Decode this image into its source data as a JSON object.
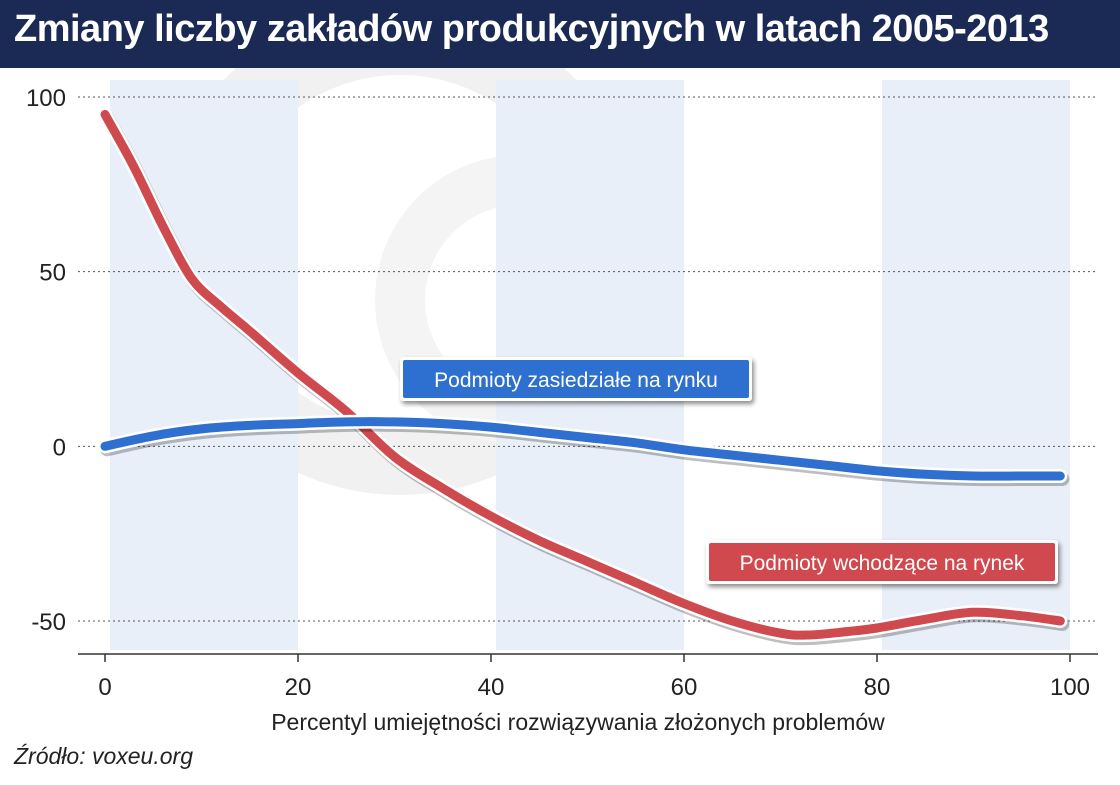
{
  "title": "Zmiany liczby zakładów produkcyjnych w latach 2005-2013",
  "source": "Źródło: voxeu.org",
  "colors": {
    "title_bg": "#1b2a54",
    "band": "#e9eff9",
    "blue": "#2f6fd0",
    "red": "#cf4a4f",
    "grid": "#555555"
  },
  "chart_data": {
    "type": "line",
    "xlabel": "Percentyl umiejętności rozwiązywania złożonych problemów",
    "ylabel": "",
    "xlim": [
      0,
      100
    ],
    "ylim": [
      -58,
      100
    ],
    "x_ticks": [
      0,
      20,
      40,
      60,
      80,
      100
    ],
    "y_ticks": [
      100,
      50,
      0,
      -50
    ],
    "x_tick_labels": [
      "0",
      "20",
      "40",
      "60",
      "80",
      "100"
    ],
    "y_tick_labels": [
      "100",
      "50",
      "0",
      "-50"
    ],
    "shaded_bands": [
      [
        0,
        20
      ],
      [
        40,
        60
      ],
      [
        80,
        100
      ]
    ],
    "grid": "horizontal dashed",
    "series": [
      {
        "name": "Podmioty zasiedziałe na rynku",
        "color": "blue",
        "x": [
          0,
          5,
          10,
          15,
          20,
          25,
          30,
          35,
          40,
          45,
          50,
          55,
          60,
          65,
          70,
          75,
          80,
          85,
          90,
          95,
          99
        ],
        "y": [
          0,
          3,
          5,
          6,
          6.5,
          7,
          7,
          6.5,
          5.5,
          4,
          2.5,
          1,
          -1,
          -2.5,
          -4,
          -5.5,
          -7,
          -8,
          -8.5,
          -8.5,
          -8.5
        ]
      },
      {
        "name": "Podmioty wchodzące na rynek",
        "color": "red",
        "x": [
          0,
          3,
          6,
          9,
          12,
          15,
          20,
          25,
          30,
          35,
          40,
          45,
          50,
          55,
          60,
          65,
          70,
          73,
          77,
          80,
          85,
          90,
          95,
          99
        ],
        "y": [
          95,
          80,
          63,
          48,
          40,
          33,
          21,
          10,
          -3,
          -12,
          -20,
          -27,
          -33,
          -39,
          -45,
          -50,
          -53.5,
          -54,
          -53,
          -52,
          -49.5,
          -47.5,
          -48.5,
          -50
        ]
      }
    ],
    "annotations": [
      {
        "text": "Podmioty zasiedziałe na rynku",
        "series": "blue"
      },
      {
        "text": "Podmioty wchodzące na rynek",
        "series": "red"
      }
    ]
  }
}
